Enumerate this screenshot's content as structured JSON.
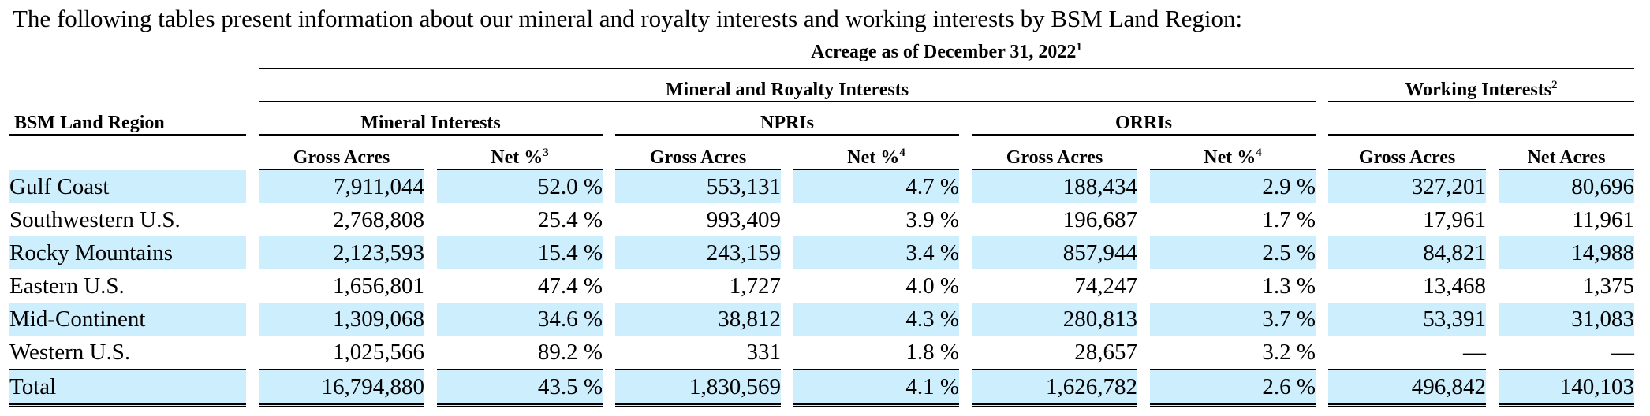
{
  "intro": "The following tables present information about our mineral and royalty interests and working interests by BSM Land Region:",
  "headers": {
    "acreage": "Acreage as of December 31, 2022",
    "acreage_note": "1",
    "mineral_royalty": "Mineral and Royalty Interests",
    "working_interests": "Working Interests",
    "working_interests_note": "2",
    "region": "BSM Land Region",
    "mineral_interests": "Mineral Interests",
    "npris": "NPRIs",
    "orris": "ORRIs",
    "gross_acres": "Gross Acres",
    "net_pct": "Net %",
    "net_pct_note_mineral": "3",
    "net_pct_note_npri": "4",
    "net_pct_note_orri": "4",
    "net_acres": "Net Acres"
  },
  "rows": [
    {
      "region": "Gulf Coast",
      "mi_gross": "7,911,044",
      "mi_net": "52.0 %",
      "npri_gross": "553,131",
      "npri_net": "4.7 %",
      "orri_gross": "188,434",
      "orri_net": "2.9 %",
      "wi_gross": "327,201",
      "wi_net": "80,696"
    },
    {
      "region": "Southwestern U.S.",
      "mi_gross": "2,768,808",
      "mi_net": "25.4 %",
      "npri_gross": "993,409",
      "npri_net": "3.9 %",
      "orri_gross": "196,687",
      "orri_net": "1.7 %",
      "wi_gross": "17,961",
      "wi_net": "11,961"
    },
    {
      "region": "Rocky Mountains",
      "mi_gross": "2,123,593",
      "mi_net": "15.4 %",
      "npri_gross": "243,159",
      "npri_net": "3.4 %",
      "orri_gross": "857,944",
      "orri_net": "2.5 %",
      "wi_gross": "84,821",
      "wi_net": "14,988"
    },
    {
      "region": "Eastern U.S.",
      "mi_gross": "1,656,801",
      "mi_net": "47.4 %",
      "npri_gross": "1,727",
      "npri_net": "4.0 %",
      "orri_gross": "74,247",
      "orri_net": "1.3 %",
      "wi_gross": "13,468",
      "wi_net": "1,375"
    },
    {
      "region": "Mid-Continent",
      "mi_gross": "1,309,068",
      "mi_net": "34.6 %",
      "npri_gross": "38,812",
      "npri_net": "4.3 %",
      "orri_gross": "280,813",
      "orri_net": "3.7 %",
      "wi_gross": "53,391",
      "wi_net": "31,083"
    },
    {
      "region": "Western U.S.",
      "mi_gross": "1,025,566",
      "mi_net": "89.2 %",
      "npri_gross": "331",
      "npri_net": "1.8 %",
      "orri_gross": "28,657",
      "orri_net": "3.2 %",
      "wi_gross": "—",
      "wi_net": "—"
    }
  ],
  "total": {
    "region": "Total",
    "mi_gross": "16,794,880",
    "mi_net": "43.5 %",
    "npri_gross": "1,830,569",
    "npri_net": "4.1 %",
    "orri_gross": "1,626,782",
    "orri_net": "2.6 %",
    "wi_gross": "496,842",
    "wi_net": "140,103"
  },
  "colors": {
    "row_shade": "#cdeefc",
    "rule": "#000000"
  }
}
